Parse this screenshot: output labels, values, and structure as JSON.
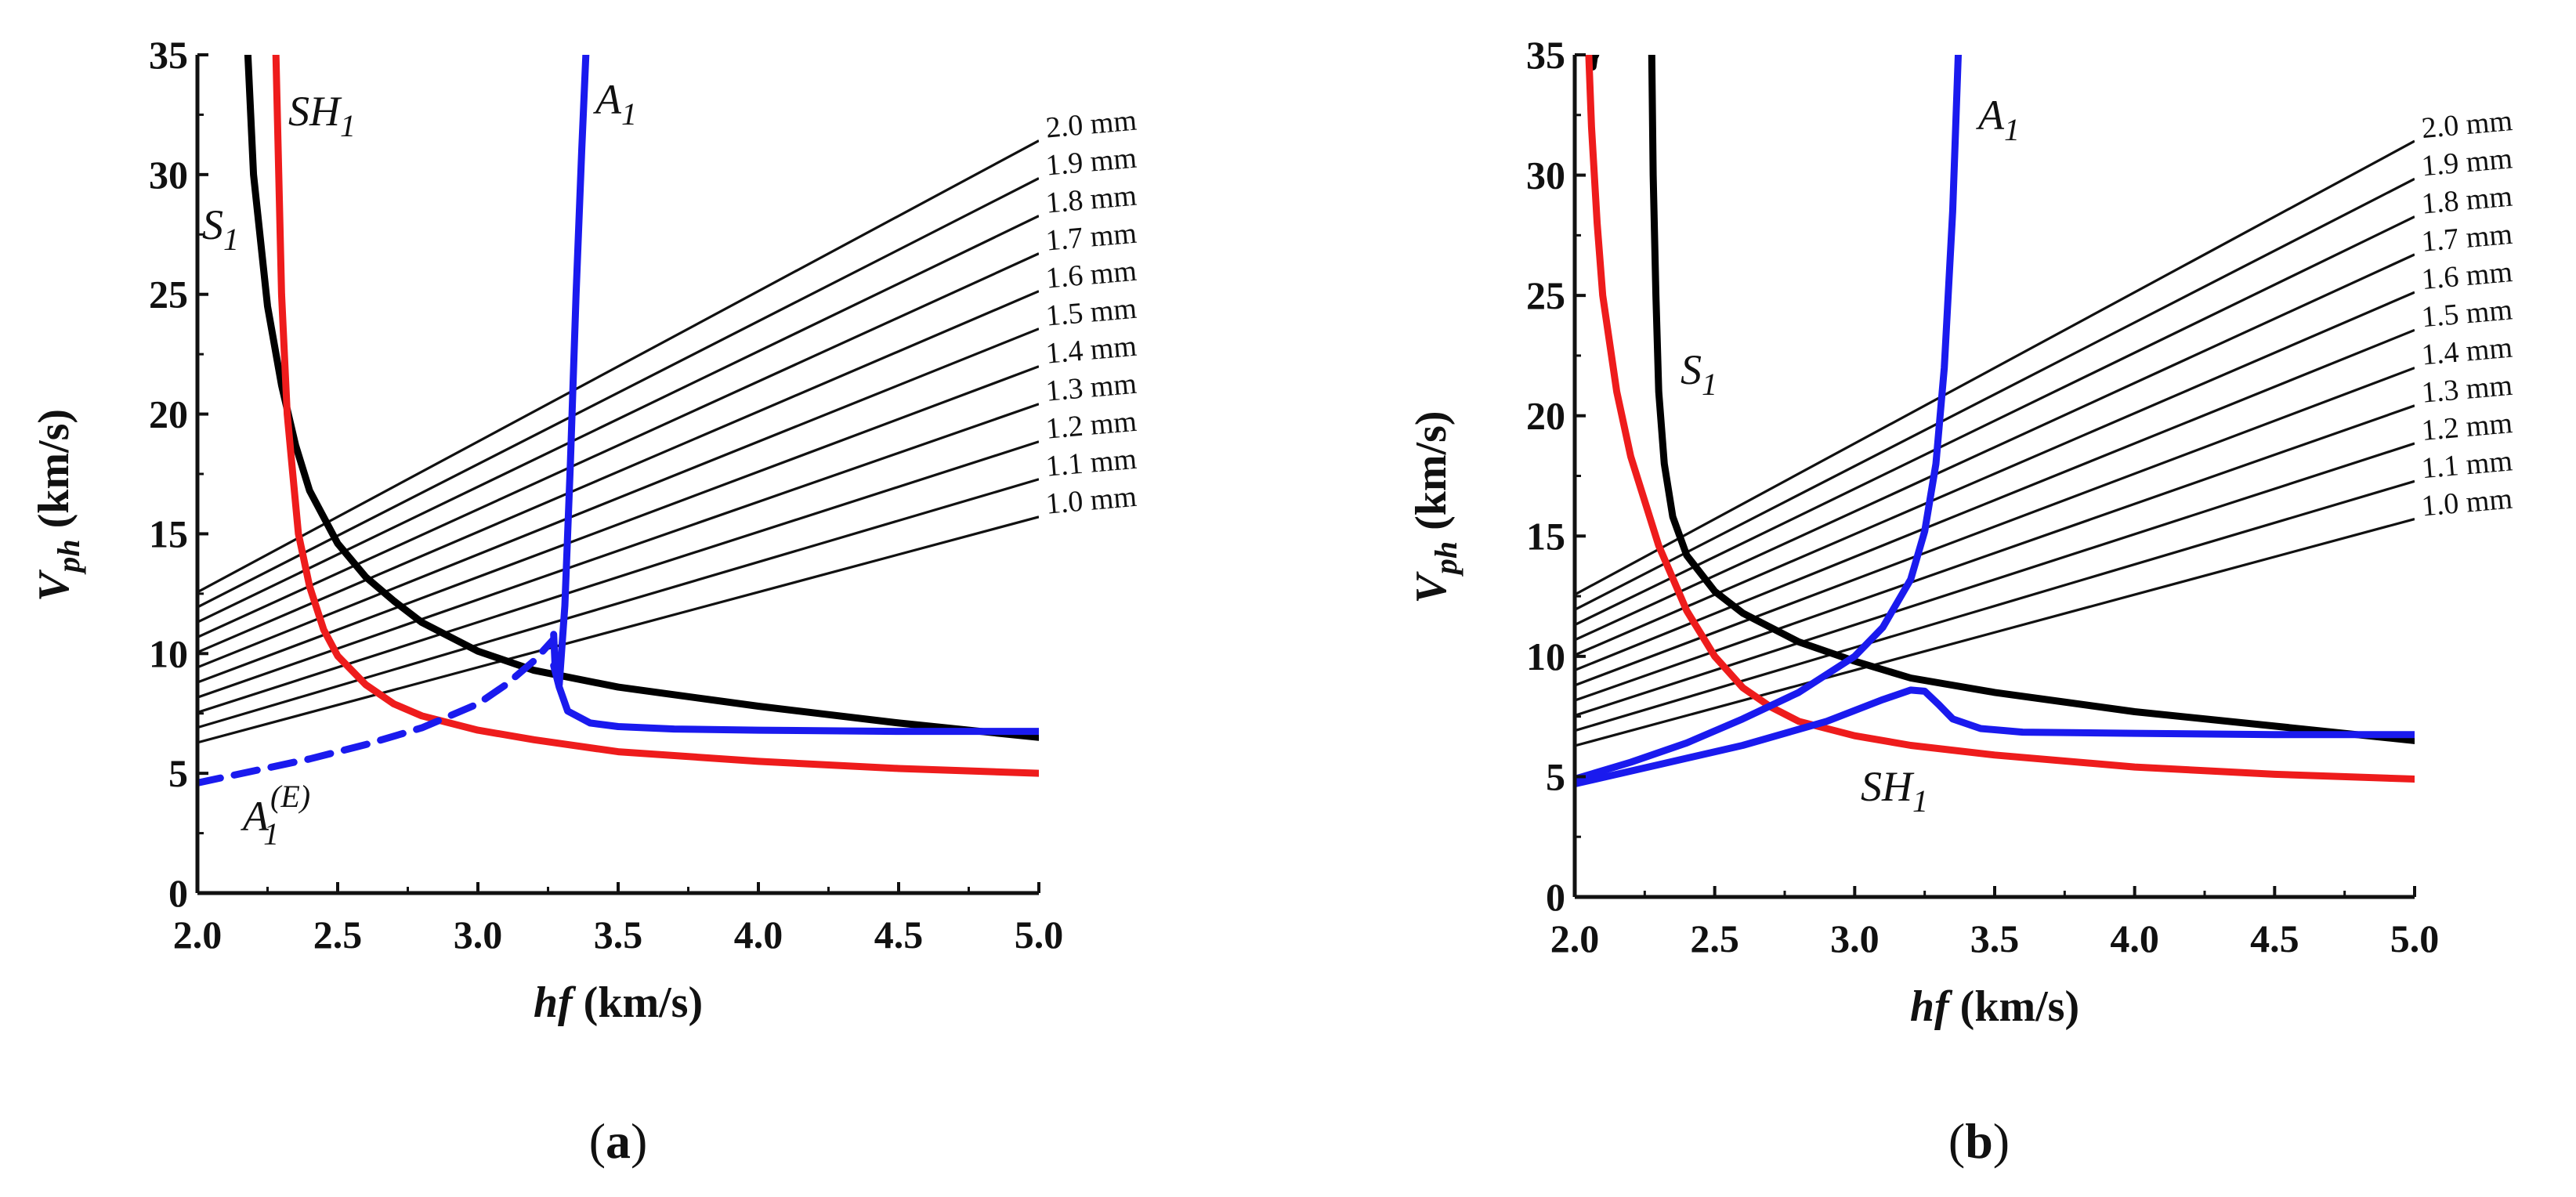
{
  "chart_data": [
    {
      "type": "line",
      "panel_label": {
        "open": "(",
        "letter": "a",
        "close": ")"
      },
      "xlabel": {
        "italic": "hf",
        "rest": " (km/s)"
      },
      "ylabel": {
        "main": "V",
        "sub": "ph",
        "rest": " (km/s)"
      },
      "xlim": [
        2.0,
        5.0
      ],
      "ylim": [
        0,
        35
      ],
      "xticks": [
        "2.0",
        "2.5",
        "3.0",
        "3.5",
        "4.0",
        "4.5",
        "5.0"
      ],
      "yticks": [
        "0",
        "5",
        "10",
        "15",
        "20",
        "25",
        "30",
        "35"
      ],
      "thickness_lines": [
        {
          "label": "1.0 mm",
          "slope": 3.1416
        },
        {
          "label": "1.1 mm",
          "slope": 3.4558
        },
        {
          "label": "1.2 mm",
          "slope": 3.7699
        },
        {
          "label": "1.3 mm",
          "slope": 4.0841
        },
        {
          "label": "1.4 mm",
          "slope": 4.3982
        },
        {
          "label": "1.5 mm",
          "slope": 4.7124
        },
        {
          "label": "1.6 mm",
          "slope": 5.0265
        },
        {
          "label": "1.7 mm",
          "slope": 5.3407
        },
        {
          "label": "1.8 mm",
          "slope": 5.6549
        },
        {
          "label": "1.9 mm",
          "slope": 5.969
        },
        {
          "label": "2.0 mm",
          "slope": 6.2832
        }
      ],
      "series": [
        {
          "name": "S1",
          "label_main": "S",
          "label_sub": "1",
          "color": "#000000",
          "dashed": false,
          "x": [
            2.18,
            2.2,
            2.25,
            2.3,
            2.35,
            2.4,
            2.5,
            2.6,
            2.7,
            2.8,
            3.0,
            3.2,
            3.5,
            4.0,
            4.5,
            5.0
          ],
          "y": [
            35,
            30,
            24.5,
            21.2,
            18.7,
            16.8,
            14.6,
            13.2,
            12.2,
            11.3,
            10.1,
            9.3,
            8.6,
            7.8,
            7.1,
            6.5
          ]
        },
        {
          "name": "SH1",
          "label_main": "SH",
          "label_sub": "1",
          "color": "#ee1c1c",
          "dashed": false,
          "x": [
            2.28,
            2.29,
            2.3,
            2.32,
            2.34,
            2.36,
            2.4,
            2.45,
            2.5,
            2.6,
            2.7,
            2.8,
            3.0,
            3.2,
            3.5,
            4.0,
            4.5,
            5.0
          ],
          "y": [
            35,
            30,
            25,
            20,
            17.5,
            15.0,
            12.8,
            11.0,
            9.9,
            8.7,
            7.9,
            7.4,
            6.8,
            6.4,
            5.9,
            5.5,
            5.2,
            5.0
          ]
        },
        {
          "name": "A1",
          "label_main": "A",
          "label_sub": "1",
          "color": "#1a1aee",
          "dashed": false,
          "x": [
            3.27,
            3.275,
            3.29,
            3.31,
            3.33,
            3.35,
            3.37,
            3.385
          ],
          "y": [
            10.8,
            9.5,
            8.7,
            12.0,
            18.0,
            25.0,
            31.0,
            35.0
          ]
        },
        {
          "name": "A1-tail",
          "label_main": "",
          "label_sub": "",
          "color": "#1a1aee",
          "dashed": false,
          "x": [
            3.27,
            3.29,
            3.32,
            3.4,
            3.5,
            3.7,
            4.0,
            4.5,
            5.0
          ],
          "y": [
            9.5,
            8.6,
            7.6,
            7.1,
            6.95,
            6.85,
            6.8,
            6.75,
            6.75
          ]
        },
        {
          "name": "A1(E)",
          "label_main": "A",
          "label_sub": "1",
          "label_sup": "(E)",
          "color": "#1a1aee",
          "dashed": true,
          "x": [
            2.0,
            2.2,
            2.4,
            2.6,
            2.8,
            3.0,
            3.1,
            3.2,
            3.27
          ],
          "y": [
            4.6,
            5.1,
            5.6,
            6.2,
            6.9,
            7.9,
            8.7,
            9.7,
            10.6
          ]
        }
      ]
    },
    {
      "type": "line",
      "panel_label": {
        "open": "(",
        "letter": "b",
        "close": ")"
      },
      "xlabel": {
        "italic": "hf",
        "rest": " (km/s)"
      },
      "ylabel": {
        "main": "V",
        "sub": "ph",
        "rest": " (km/s)"
      },
      "xlim": [
        2.0,
        5.0
      ],
      "ylim": [
        0,
        35
      ],
      "xticks": [
        "2.0",
        "2.5",
        "3.0",
        "3.5",
        "4.0",
        "4.5",
        "5.0"
      ],
      "yticks": [
        "0",
        "5",
        "10",
        "15",
        "20",
        "25",
        "30",
        "35"
      ],
      "thickness_lines": [
        {
          "label": "1.0 mm",
          "slope": 3.1416
        },
        {
          "label": "1.1 mm",
          "slope": 3.4558
        },
        {
          "label": "1.2 mm",
          "slope": 3.7699
        },
        {
          "label": "1.3 mm",
          "slope": 4.0841
        },
        {
          "label": "1.4 mm",
          "slope": 4.3982
        },
        {
          "label": "1.5 mm",
          "slope": 4.7124
        },
        {
          "label": "1.6 mm",
          "slope": 5.0265
        },
        {
          "label": "1.7 mm",
          "slope": 5.3407
        },
        {
          "label": "1.8 mm",
          "slope": 5.6549
        },
        {
          "label": "1.9 mm",
          "slope": 5.969
        },
        {
          "label": "2.0 mm",
          "slope": 6.2832
        }
      ],
      "series": [
        {
          "name": "S1",
          "label_main": "S",
          "label_sub": "1",
          "color": "#000000",
          "dashed": false,
          "x": [
            2.275,
            2.28,
            2.29,
            2.3,
            2.32,
            2.35,
            2.4,
            2.5,
            2.6,
            2.8,
            3.0,
            3.2,
            3.5,
            4.0,
            4.5,
            5.0
          ],
          "y": [
            35,
            30,
            25,
            21,
            18,
            15.8,
            14.2,
            12.7,
            11.8,
            10.6,
            9.8,
            9.1,
            8.5,
            7.7,
            7.1,
            6.5
          ]
        },
        {
          "name": "S1-top",
          "label_main": "",
          "label_sub": "",
          "color": "#000000",
          "dashed": false,
          "x": [
            2.065,
            2.07,
            2.075
          ],
          "y": [
            34.5,
            34.9,
            35
          ]
        },
        {
          "name": "SH1",
          "label_main": "SH",
          "label_sub": "1",
          "color": "#ee1c1c",
          "dashed": false,
          "x": [
            2.05,
            2.06,
            2.08,
            2.1,
            2.15,
            2.2,
            2.3,
            2.4,
            2.5,
            2.6,
            2.7,
            2.8,
            3.0,
            3.2,
            3.5,
            4.0,
            4.5,
            5.0
          ],
          "y": [
            35,
            32,
            28,
            25,
            21,
            18.3,
            14.6,
            11.9,
            10.0,
            8.7,
            7.9,
            7.3,
            6.7,
            6.3,
            5.9,
            5.4,
            5.1,
            4.9
          ]
        },
        {
          "name": "A1",
          "label_main": "A",
          "label_sub": "1",
          "color": "#1a1aee",
          "dashed": false,
          "x": [
            2.0,
            2.2,
            2.4,
            2.6,
            2.8,
            3.0,
            3.1,
            3.2,
            3.25,
            3.29,
            3.32,
            3.35,
            3.37
          ],
          "y": [
            4.9,
            5.6,
            6.4,
            7.4,
            8.5,
            10.0,
            11.2,
            13.2,
            15.2,
            18.0,
            22.0,
            28.5,
            35.0
          ]
        },
        {
          "name": "A1-lower",
          "label_main": "",
          "label_sub": "",
          "color": "#1a1aee",
          "dashed": false,
          "x": [
            2.0,
            2.3,
            2.6,
            2.9,
            3.1,
            3.2,
            3.25,
            3.3,
            3.35,
            3.45,
            3.6,
            4.0,
            4.5,
            5.0
          ],
          "y": [
            4.7,
            5.5,
            6.3,
            7.3,
            8.2,
            8.6,
            8.55,
            8.0,
            7.4,
            7.0,
            6.85,
            6.8,
            6.75,
            6.75
          ]
        }
      ]
    }
  ]
}
